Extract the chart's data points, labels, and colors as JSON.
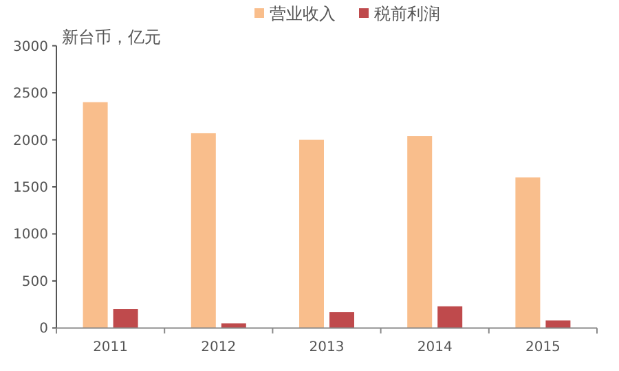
{
  "chart_data": {
    "type": "bar",
    "ylabel": "新台币，亿元",
    "categories": [
      "2011",
      "2012",
      "2013",
      "2014",
      "2015"
    ],
    "series": [
      {
        "name": "营业收入",
        "color": "#f9be8c",
        "values": [
          2400,
          2070,
          2000,
          2040,
          1600
        ]
      },
      {
        "name": "税前利润",
        "color": "#bf4a4c",
        "values": [
          200,
          50,
          170,
          230,
          80
        ]
      }
    ],
    "ylim": [
      0,
      3000
    ],
    "yticks": [
      0,
      500,
      1000,
      1500,
      2000,
      2500,
      3000
    ],
    "legend": "top",
    "grid": false
  }
}
